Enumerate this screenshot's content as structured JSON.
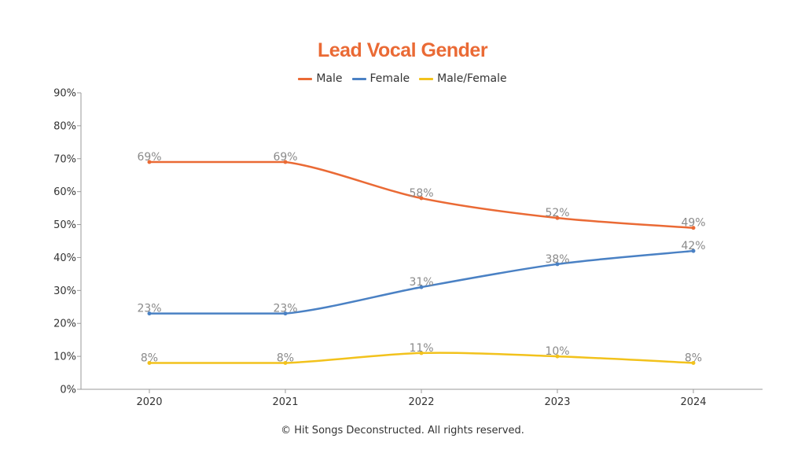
{
  "chart_data": {
    "type": "line",
    "title": "Lead Vocal Gender",
    "categories": [
      "2020",
      "2021",
      "2022",
      "2023",
      "2024"
    ],
    "series": [
      {
        "name": "Male",
        "color": "#ea6a35",
        "values": [
          69,
          69,
          58,
          52,
          49
        ],
        "labels": [
          "69%",
          "69%",
          "58%",
          "52%",
          "49%"
        ]
      },
      {
        "name": "Female",
        "color": "#4a81c4",
        "values": [
          23,
          23,
          31,
          38,
          42
        ],
        "labels": [
          "23%",
          "23%",
          "31%",
          "38%",
          "42%"
        ]
      },
      {
        "name": "Male/Female",
        "color": "#f2c21c",
        "values": [
          8,
          8,
          11,
          10,
          8
        ],
        "labels": [
          "8%",
          "8%",
          "11%",
          "10%",
          "8%"
        ]
      }
    ],
    "ylim": [
      0,
      90
    ],
    "yticks": [
      0,
      10,
      20,
      30,
      40,
      50,
      60,
      70,
      80,
      90
    ],
    "ytick_labels": [
      "0%",
      "10%",
      "20%",
      "30%",
      "40%",
      "50%",
      "60%",
      "70%",
      "80%",
      "90%"
    ],
    "xlabel": "",
    "ylabel": "",
    "legend": "top-center",
    "grid": false
  },
  "footer": {
    "copyright": "© Hit Songs Deconstructed. All rights reserved."
  }
}
